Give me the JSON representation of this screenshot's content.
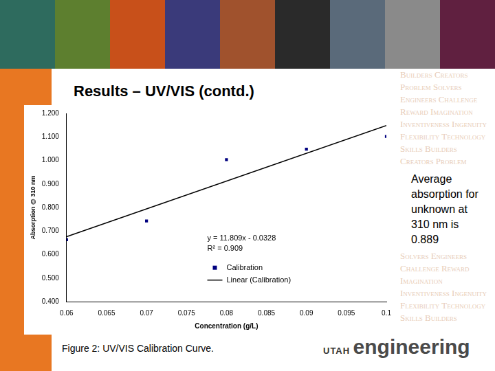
{
  "slide": {
    "title": "Results – UV/VIS (contd.)",
    "note": "Average absorption for unknown at 310 nm is 0.889",
    "caption": "Figure 2:  UV/VIS Calibration Curve.",
    "logo": [
      "UTAH",
      "engineering"
    ],
    "background_words": [
      "Builders",
      "Creators",
      "Problem",
      "Solvers",
      "Engineers",
      "Challenge",
      "Reward",
      "Imagination",
      "Inventiveness",
      "Ingenuity",
      "Flexibility",
      "Technology",
      "Skills"
    ]
  },
  "chart_data": {
    "type": "scatter",
    "xlabel": "Concentration (g/L)",
    "ylabel": "Absorption @ 310 nm",
    "xlim": [
      0.06,
      0.1
    ],
    "ylim": [
      0.4,
      1.2
    ],
    "xticks": [
      0.06,
      0.065,
      0.07,
      0.075,
      0.08,
      0.085,
      0.09,
      0.095,
      0.1
    ],
    "yticks": [
      {
        "value": 0.4,
        "label": "0.400"
      },
      {
        "value": 0.5,
        "label": "0.500"
      },
      {
        "value": 0.6,
        "label": "0.600"
      },
      {
        "value": 0.7,
        "label": "0.700"
      },
      {
        "value": 0.8,
        "label": "0.800"
      },
      {
        "value": 0.9,
        "label": "0.900"
      },
      {
        "value": 1.0,
        "label": "1.000"
      },
      {
        "value": 1.1,
        "label": "1.100"
      },
      {
        "value": 1.2,
        "label": "1.200"
      }
    ],
    "grid": false,
    "legend": "bottom",
    "annotations": [
      "y = 11.809x - 0.0328",
      "R² = 0.909"
    ],
    "series": [
      {
        "name": "Calibration",
        "type": "scatter",
        "color": "#00007f",
        "marker": "square",
        "x": [
          0.06,
          0.07,
          0.08,
          0.09,
          0.1
        ],
        "values": [
          0.663,
          0.743,
          1.003,
          1.048,
          1.102
        ]
      },
      {
        "name": "Linear (Calibration)",
        "type": "line",
        "color": "#000000",
        "line_style": "solid",
        "x": [
          0.06,
          0.1
        ],
        "values": [
          0.676,
          1.148
        ]
      }
    ]
  }
}
